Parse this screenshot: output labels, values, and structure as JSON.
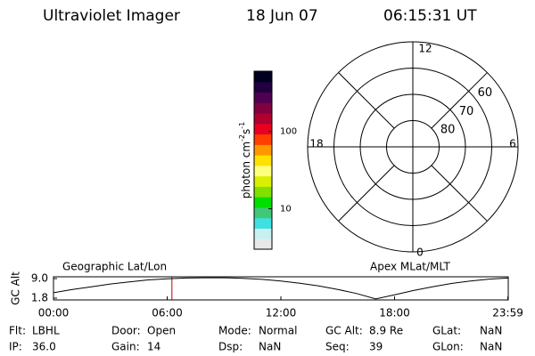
{
  "header": {
    "title": "Ultraviolet Imager",
    "date": "18 Jun 07",
    "time": "06:15:31 UT"
  },
  "colorbar": {
    "label": "photon cm",
    "exp1": "-2",
    "unit2": "s",
    "exp2": "-1",
    "scale": "log",
    "lim": [
      3,
      600
    ],
    "ticks": [
      10,
      100
    ],
    "colors": [
      "#e8e8e8",
      "#c8f0f0",
      "#40e0e0",
      "#40c878",
      "#00e000",
      "#80e000",
      "#d8f000",
      "#ffff80",
      "#ffe000",
      "#ff9800",
      "#ff4000",
      "#e80020",
      "#b00030",
      "#800040",
      "#500050",
      "#200040",
      "#000020"
    ]
  },
  "polar": {
    "lat_min": 50,
    "rings": [
      80,
      70,
      60
    ],
    "mlt_labels": {
      "top": "12",
      "right": "6",
      "bottom": "0",
      "left": "18"
    }
  },
  "alt_plot": {
    "ylabel": "GC Alt",
    "left_label": "Geographic Lat/Lon",
    "right_label": "Apex MLat/MLT",
    "ylim": [
      1.15,
      9.65
    ],
    "yticks": [
      {
        "value": 9.0,
        "label": "9.0"
      },
      1.8
    ],
    "xlim": [
      0,
      24
    ],
    "xticks": [
      {
        "value": 0,
        "label": "00:00"
      },
      {
        "value": 6,
        "label": "06:00"
      },
      {
        "value": 12,
        "label": "12:00"
      },
      {
        "value": 18,
        "label": "18:00"
      },
      {
        "value": 23.98,
        "label": "23:59"
      }
    ],
    "x": [
      0,
      1,
      2,
      3,
      4,
      5,
      6,
      7,
      8,
      9,
      10,
      11,
      12,
      13,
      14,
      15,
      16,
      17,
      18,
      19,
      20,
      21,
      22,
      23,
      23.98
    ],
    "values": [
      3.8,
      5.0,
      6.0,
      7.0,
      7.8,
      8.5,
      8.9,
      9.2,
      9.3,
      9.3,
      9.1,
      8.7,
      8.1,
      7.3,
      6.3,
      5.0,
      3.5,
      1.5,
      3.0,
      4.6,
      6.0,
      7.2,
      8.1,
      8.8,
      9.2
    ],
    "color": "#000000",
    "marker_time": 6.25,
    "marker_color": "#c00000"
  },
  "footer": {
    "rows": [
      [
        [
          "Flt:",
          "LBHL"
        ],
        [
          "Door:",
          "Open"
        ],
        [
          "Mode:",
          "Normal"
        ],
        [
          "GC Alt:",
          "8.9 Re"
        ],
        [
          "GLat:",
          "NaN"
        ]
      ],
      [
        [
          "IP:",
          "36.0"
        ],
        [
          "Gain:",
          "14"
        ],
        [
          "Dsp:",
          "NaN"
        ],
        [
          "Seq:",
          "39"
        ],
        [
          "GLon:",
          "NaN"
        ]
      ]
    ]
  }
}
